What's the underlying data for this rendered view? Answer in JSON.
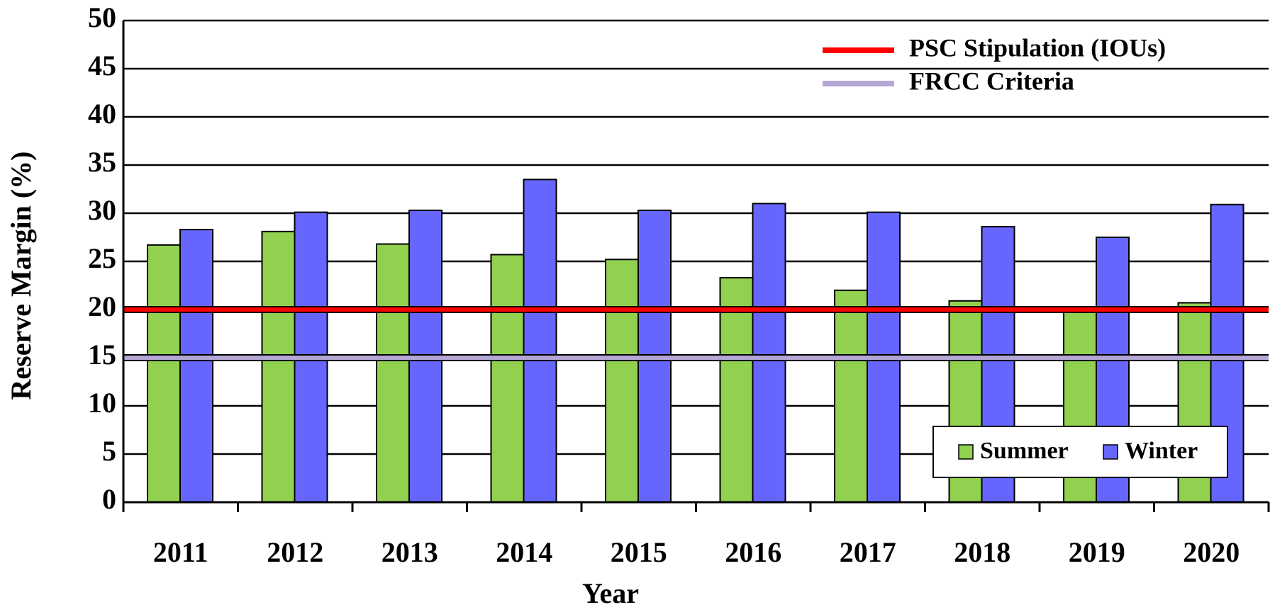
{
  "chart_data": {
    "type": "bar",
    "x_label": "Year",
    "y_label": "Reserve Margin (%)",
    "categories": [
      "2011",
      "2012",
      "2013",
      "2014",
      "2015",
      "2016",
      "2017",
      "2018",
      "2019",
      "2020"
    ],
    "series": [
      {
        "name": "Summer",
        "color": "#92d050",
        "values": [
          26.7,
          28.1,
          26.8,
          25.7,
          25.2,
          23.3,
          22.0,
          20.9,
          20.0,
          20.7
        ]
      },
      {
        "name": "Winter",
        "color": "#6666ff",
        "values": [
          28.3,
          30.1,
          30.3,
          33.5,
          30.3,
          31.0,
          30.1,
          28.6,
          27.5,
          30.9
        ]
      }
    ],
    "reference_lines": [
      {
        "name": "PSC Stipulation (IOUs)",
        "value": 20,
        "color": "#ff0000"
      },
      {
        "name": "FRCC Criteria",
        "value": 15,
        "color": "#b4a7d6"
      }
    ],
    "ylim": [
      0,
      50
    ],
    "yticks": [
      0,
      5,
      10,
      15,
      20,
      25,
      30,
      35,
      40,
      45,
      50
    ],
    "grid": true
  }
}
